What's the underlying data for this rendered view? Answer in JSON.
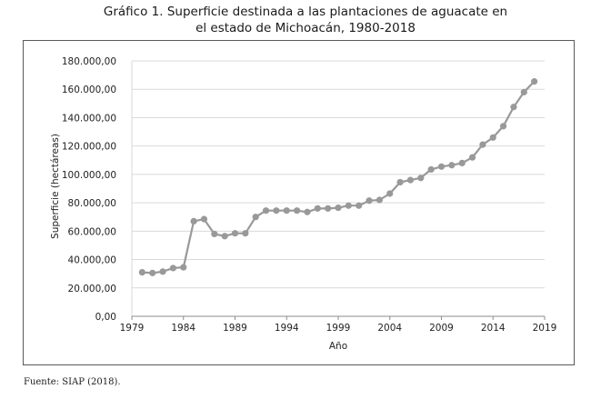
{
  "title_line1": "Gráfico 1. Superficie destinada a las plantaciones de aguacate en",
  "title_line2": "el estado de Michoacán, 1980-2018",
  "source": "Fuente: SIAP (2018).",
  "chart_data": {
    "type": "line",
    "xlabel": "Año",
    "ylabel": "Superficie (hectáreas)",
    "xlim": [
      1979,
      2019
    ],
    "ylim": [
      0,
      180000
    ],
    "x_ticks": [
      1979,
      1984,
      1989,
      1994,
      1999,
      2004,
      2009,
      2014,
      2019
    ],
    "y_ticks": [
      0,
      20000,
      40000,
      60000,
      80000,
      100000,
      120000,
      140000,
      160000,
      180000
    ],
    "y_tick_labels": [
      "0,00",
      "20.000,00",
      "40.000,00",
      "60.000,00",
      "80.000,00",
      "100.000,00",
      "120.000,00",
      "140.000,00",
      "160.000,00",
      "180.000,00"
    ],
    "grid": true,
    "series_color": "#999999",
    "series": [
      {
        "x": [
          1980,
          1981,
          1982,
          1983,
          1984,
          1985,
          1986,
          1987,
          1988,
          1989,
          1990,
          1991,
          1992,
          1993,
          1994,
          1995,
          1996,
          1997,
          1998,
          1999,
          2000,
          2001,
          2002,
          2003,
          2004,
          2005,
          2006,
          2007,
          2008,
          2009,
          2010,
          2011,
          2012,
          2013,
          2014,
          2015,
          2016,
          2017,
          2018
        ],
        "values": [
          31000,
          30500,
          31500,
          34000,
          34500,
          67000,
          68500,
          58000,
          56500,
          58500,
          58500,
          70000,
          74500,
          74500,
          74500,
          74500,
          73500,
          76000,
          76000,
          76500,
          78000,
          78000,
          81500,
          82000,
          86500,
          94500,
          96000,
          97500,
          103500,
          105500,
          106500,
          108000,
          112000,
          121000,
          126000,
          134000,
          147500,
          158000,
          165500
        ]
      }
    ]
  }
}
